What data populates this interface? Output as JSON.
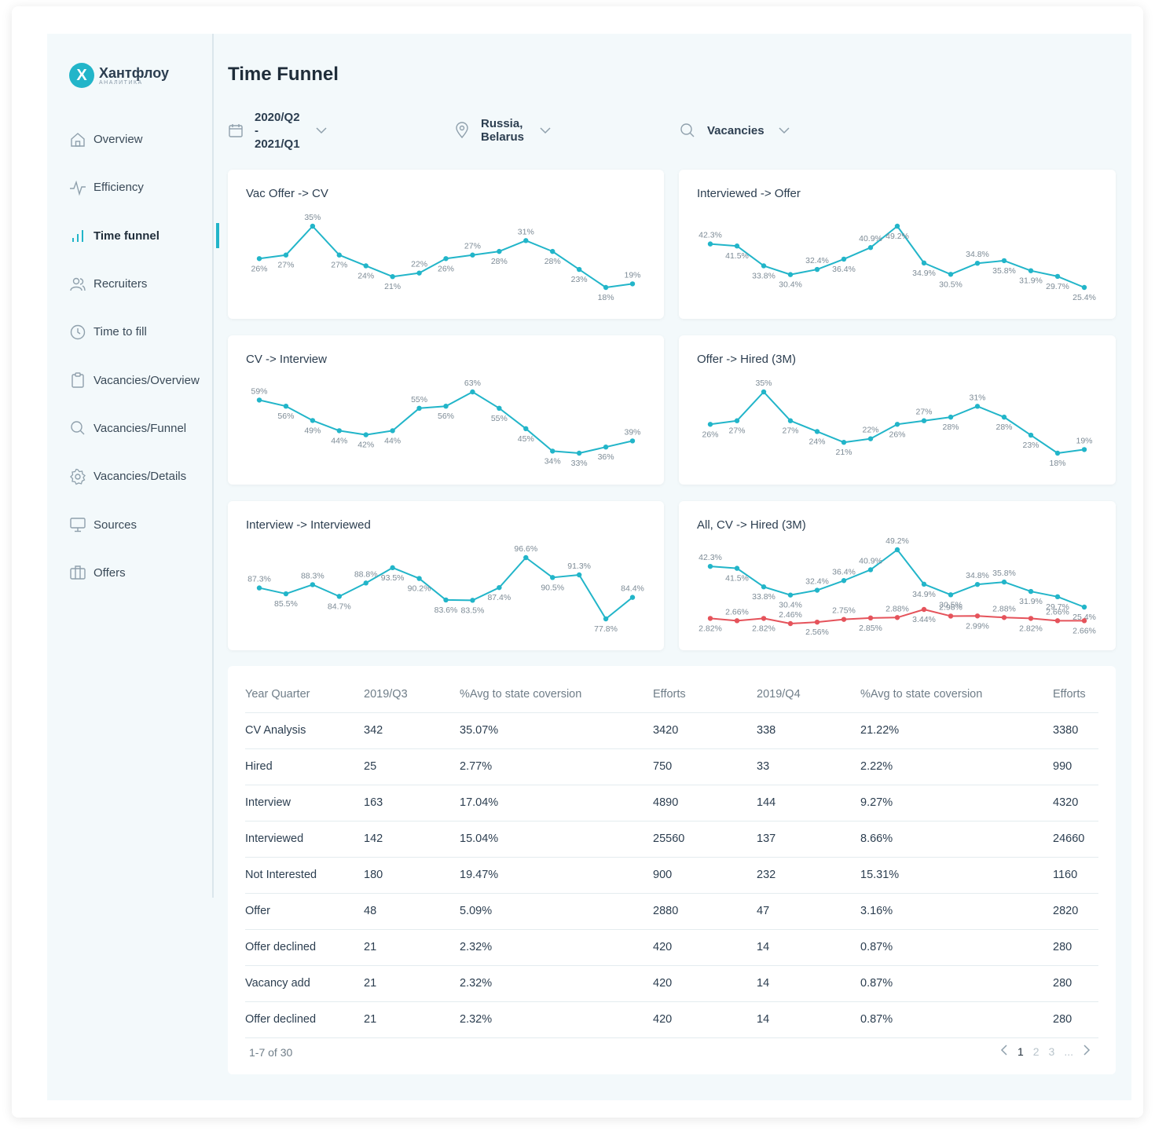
{
  "brand": {
    "logo_letter": "X",
    "name": "Хантфлоу",
    "sub": "АНАЛИТИКА"
  },
  "page_title": "Time Funnel",
  "nav": [
    {
      "label": "Overview",
      "icon": "home-icon"
    },
    {
      "label": "Efficiency",
      "icon": "pulse-icon"
    },
    {
      "label": "Time funnel",
      "icon": "bar-chart-icon",
      "active": true
    },
    {
      "label": "Recruiters",
      "icon": "users-icon"
    },
    {
      "label": "Time to fill",
      "icon": "clock-icon"
    },
    {
      "label": "Vacancies/Overview",
      "icon": "clipboard-icon"
    },
    {
      "label": "Vacancies/Funnel",
      "icon": "search-icon"
    },
    {
      "label": "Vacancies/Details",
      "icon": "gear-icon"
    },
    {
      "label": "Sources",
      "icon": "monitor-icon"
    },
    {
      "label": "Offers",
      "icon": "briefcase-icon"
    }
  ],
  "filters": {
    "period": "2020/Q2 - 2021/Q1",
    "location": "Russia, Belarus",
    "search": "Vacancies"
  },
  "colors": {
    "accent": "#22b5c9",
    "series_red": "#e5535b"
  },
  "chart_data": [
    {
      "type": "line",
      "title": "Vac Offer -> CV",
      "series": [
        {
          "values": [
            26,
            27,
            35,
            27,
            24,
            21,
            22,
            26,
            27,
            28,
            31,
            28,
            23,
            18,
            19
          ]
        }
      ],
      "labels": [
        "26%",
        "27%",
        "35%",
        "27%",
        "24%",
        "21%",
        "22%",
        "26%",
        "27%",
        "28%",
        "31%",
        "28%",
        "23%",
        "18%",
        "19%"
      ]
    },
    {
      "type": "line",
      "title": "Interviewed -> Offer",
      "series": [
        {
          "values": [
            42.3,
            41.5,
            33.8,
            30.4,
            32.4,
            36.4,
            40.9,
            49.2,
            34.9,
            30.5,
            34.8,
            35.8,
            31.9,
            29.7,
            25.4
          ]
        }
      ],
      "labels": [
        "42.3%",
        "41.5%",
        "33.8%",
        "30.4%",
        "32.4%",
        "36.4%",
        "40.9%",
        "49.2%",
        "34.9%",
        "30.5%",
        "34.8%",
        "35.8%",
        "31.9%",
        "29.7%",
        "25.4%"
      ]
    },
    {
      "type": "line",
      "title": "CV -> Interview",
      "series": [
        {
          "values": [
            59,
            56,
            49,
            44,
            42,
            44,
            55,
            56,
            63,
            55,
            45,
            34,
            33,
            36,
            39
          ]
        }
      ],
      "labels": [
        "59%",
        "56%",
        "49%",
        "44%",
        "42%",
        "44%",
        "55%",
        "56%",
        "63%",
        "55%",
        "45%",
        "34%",
        "33%",
        "36%",
        "39%"
      ]
    },
    {
      "type": "line",
      "title": "Offer -> Hired (3M)",
      "series": [
        {
          "values": [
            26,
            27,
            35,
            27,
            24,
            21,
            22,
            26,
            27,
            28,
            31,
            28,
            23,
            18,
            19
          ]
        }
      ],
      "labels": [
        "26%",
        "27%",
        "35%",
        "27%",
        "24%",
        "21%",
        "22%",
        "26%",
        "27%",
        "28%",
        "31%",
        "28%",
        "23%",
        "18%",
        "19%"
      ]
    },
    {
      "type": "line",
      "title": "Interview -> Interviewed",
      "series": [
        {
          "values": [
            87.3,
            85.5,
            88.3,
            84.7,
            88.8,
            93.5,
            90.2,
            83.6,
            83.5,
            87.4,
            96.6,
            90.5,
            91.3,
            77.8,
            84.4
          ]
        }
      ],
      "labels": [
        "87.3%",
        "85.5%",
        "88.3%",
        "84.7%",
        "88.8%",
        "93.5%",
        "90.2%",
        "83.6%",
        "83.5%",
        "87.4%",
        "96.6%",
        "90.5%",
        "91.3%",
        "77.8%",
        "84.4%"
      ]
    },
    {
      "type": "line",
      "title": "All, CV -> Hired (3M)",
      "series": [
        {
          "values": [
            42.3,
            41.5,
            33.8,
            30.4,
            32.4,
            36.4,
            40.9,
            49.2,
            34.9,
            30.5,
            34.8,
            35.8,
            31.9,
            29.7,
            25.4
          ],
          "labels": [
            "42.3%",
            "41.5%",
            "33.8%",
            "30.4%",
            "32.4%",
            "36.4%",
            "40.9%",
            "49.2%",
            "34.9%",
            "30.5%",
            "34.8%",
            "35.8%",
            "31.9%",
            "29.7%",
            "25.4%"
          ]
        },
        {
          "values": [
            2.82,
            2.66,
            2.82,
            2.46,
            2.56,
            2.75,
            2.85,
            2.88,
            3.44,
            2.98,
            2.99,
            2.88,
            2.82,
            2.66,
            2.66
          ],
          "labels": [
            "2.82%",
            "2.66%",
            "2.82%",
            "2.46%",
            "2.56%",
            "2.75%",
            "2.85%",
            "2.88%",
            "3.44%",
            "2.98%",
            "2.99%",
            "2.88%",
            "2.82%",
            "2.66%",
            "2.66%"
          ]
        }
      ]
    }
  ],
  "table": {
    "headers": [
      "Year Quarter",
      "2019/Q3",
      "%Avg to state coversion",
      "Efforts",
      "2019/Q4",
      "%Avg to state coversion",
      "Efforts"
    ],
    "rows": [
      [
        "CV Analysis",
        "342",
        "35.07%",
        "3420",
        "338",
        "21.22%",
        "3380"
      ],
      [
        "Hired",
        "25",
        "2.77%",
        "750",
        "33",
        "2.22%",
        "990"
      ],
      [
        "Interview",
        "163",
        "17.04%",
        "4890",
        "144",
        "9.27%",
        "4320"
      ],
      [
        "Interviewed",
        "142",
        "15.04%",
        "25560",
        "137",
        "8.66%",
        "24660"
      ],
      [
        "Not Interested",
        "180",
        "19.47%",
        "900",
        "232",
        "15.31%",
        "1160"
      ],
      [
        "Offer",
        "48",
        "5.09%",
        "2880",
        "47",
        "3.16%",
        "2820"
      ],
      [
        "Offer declined",
        "21",
        "2.32%",
        "420",
        "14",
        "0.87%",
        "280"
      ],
      [
        "Vacancy add",
        "21",
        "2.32%",
        "420",
        "14",
        "0.87%",
        "280"
      ],
      [
        "Offer declined",
        "21",
        "2.32%",
        "420",
        "14",
        "0.87%",
        "280"
      ]
    ],
    "pagination": {
      "info": "1-7 of 30",
      "pages": [
        "1",
        "2",
        "3",
        "..."
      ],
      "current": "1"
    }
  }
}
